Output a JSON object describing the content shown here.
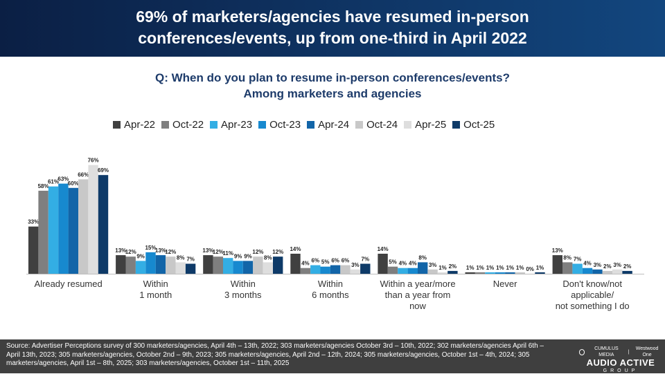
{
  "header": {
    "line1": "69% of marketers/agencies have resumed in-person",
    "line2": "conferences/events, up from one-third in April 2022"
  },
  "subtitle": {
    "line1": "Q: When do you plan to resume in-person conferences/events?",
    "line2": "Among marketers and agencies"
  },
  "chart_data": {
    "type": "bar",
    "title": "Q: When do you plan to resume in-person conferences/events? Among marketers and agencies",
    "xlabel": "",
    "ylabel": "",
    "ylim": [
      0,
      80
    ],
    "grid": false,
    "legend_position": "top",
    "categories": [
      [
        "Already resumed"
      ],
      [
        "Within",
        "1 month"
      ],
      [
        "Within",
        "3 months"
      ],
      [
        "Within",
        "6 months"
      ],
      [
        "Within a year/more",
        "than a year from",
        "now"
      ],
      [
        "Never"
      ],
      [
        "Don't know/not",
        "applicable/",
        "not something I do"
      ]
    ],
    "series": [
      {
        "name": "Apr-22",
        "color": "#404040",
        "values": [
          33,
          13,
          13,
          14,
          14,
          1,
          13
        ]
      },
      {
        "name": "Oct-22",
        "color": "#7f7f7f",
        "values": [
          58,
          12,
          12,
          4,
          5,
          1,
          8
        ]
      },
      {
        "name": "Apr-23",
        "color": "#33aee4",
        "values": [
          61,
          9,
          11,
          6,
          4,
          1,
          7
        ]
      },
      {
        "name": "Oct-23",
        "color": "#1789cf",
        "values": [
          63,
          15,
          9,
          5,
          4,
          1,
          4
        ]
      },
      {
        "name": "Apr-24",
        "color": "#1265a8",
        "values": [
          60,
          13,
          9,
          6,
          8,
          1,
          3
        ]
      },
      {
        "name": "Oct-24",
        "color": "#c8c8c8",
        "values": [
          66,
          12,
          12,
          6,
          3,
          1,
          2
        ]
      },
      {
        "name": "Apr-25",
        "color": "#dedede",
        "values": [
          76,
          8,
          8,
          3,
          1,
          0,
          3
        ]
      },
      {
        "name": "Oct-25",
        "color": "#0e3a68",
        "values": [
          69,
          7,
          12,
          7,
          2,
          1,
          2
        ]
      }
    ]
  },
  "footer": {
    "source": "Source: Advertiser Perceptions survey of 300 marketers/agencies, April 4th – 13th,  2022; 303 marketers/agencies October 3rd – 10th, 2022; 302 marketers/agencies April 6th – April 13th, 2023; 305 marketers/agencies, October 2nd – 9th, 2023; 305 marketers/agencies, April 2nd – 12th, 2024; 305 marketers/agencies, October 1st – 4th, 2024; 305 marketers/agencies, April 1st –  8th, 2025; 303 marketers/agencies, October 1st – 11th, 2025"
  },
  "brand": {
    "top_left": "CUMULUS MEDIA",
    "top_right": "Westwood One",
    "main": "AUDIO ACTIVE",
    "group": "GROUP"
  }
}
